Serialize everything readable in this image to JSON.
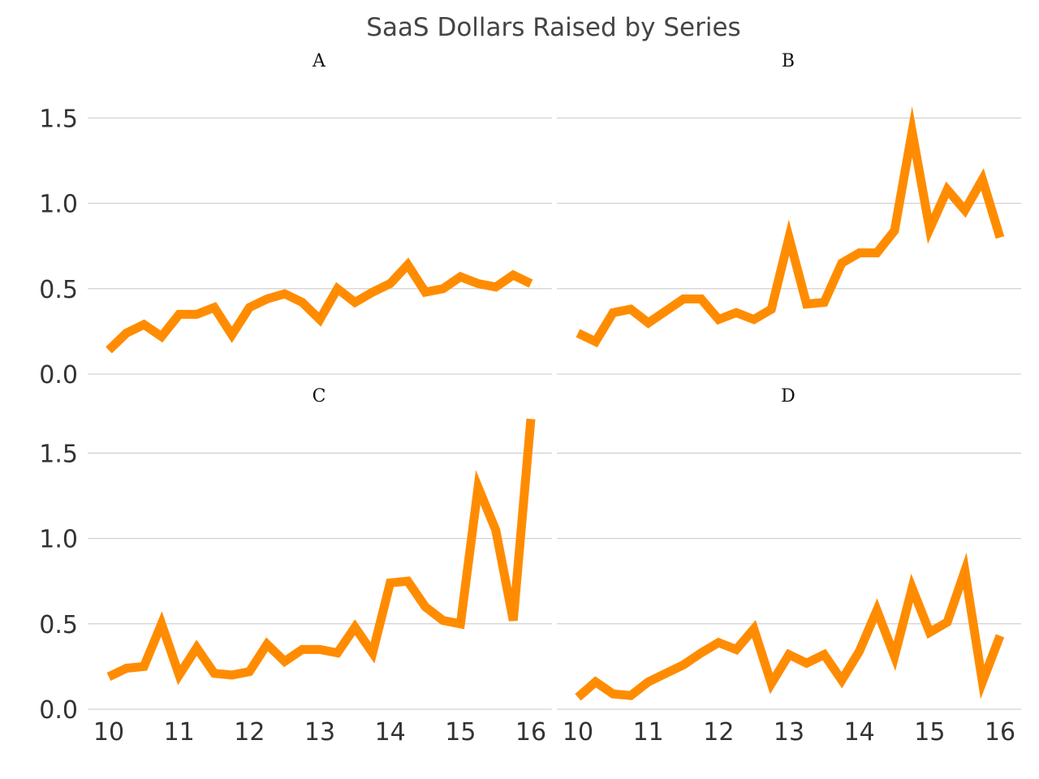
{
  "chart_data": {
    "type": "line",
    "title": "SaaS Dollars Raised by Series",
    "xlabel": "",
    "ylabel": "",
    "x_ticks": [
      10,
      11,
      12,
      13,
      14,
      15,
      16
    ],
    "y_ticks": [
      "0.0",
      "0.5",
      "1.0",
      "1.5"
    ],
    "xlim": [
      10,
      16
    ],
    "ylim": [
      0,
      1.75
    ],
    "grid": "horizontal",
    "line_color": "#FF8C00",
    "panels": [
      {
        "title": "A",
        "x": [
          10,
          10.25,
          10.5,
          10.75,
          11,
          11.25,
          11.5,
          11.75,
          12,
          12.25,
          12.5,
          12.75,
          13,
          13.25,
          13.5,
          13.75,
          14,
          14.25,
          14.5,
          14.75,
          15,
          15.25,
          15.5,
          15.75,
          16
        ],
        "y": [
          0.14,
          0.24,
          0.29,
          0.22,
          0.35,
          0.35,
          0.39,
          0.23,
          0.39,
          0.44,
          0.47,
          0.42,
          0.32,
          0.5,
          0.42,
          0.48,
          0.53,
          0.64,
          0.48,
          0.5,
          0.57,
          0.53,
          0.51,
          0.58,
          0.53
        ]
      },
      {
        "title": "B",
        "x": [
          10,
          10.25,
          10.5,
          10.75,
          11,
          11.25,
          11.5,
          11.75,
          12,
          12.25,
          12.5,
          12.75,
          13,
          13.25,
          13.5,
          13.75,
          14,
          14.25,
          14.5,
          14.75,
          15,
          15.25,
          15.5,
          15.75,
          16
        ],
        "y": [
          0.24,
          0.19,
          0.36,
          0.38,
          0.3,
          0.37,
          0.44,
          0.44,
          0.32,
          0.36,
          0.32,
          0.38,
          0.8,
          0.41,
          0.42,
          0.65,
          0.71,
          0.71,
          0.84,
          1.42,
          0.85,
          1.08,
          0.96,
          1.14,
          0.8
        ]
      },
      {
        "title": "C",
        "x": [
          10,
          10.25,
          10.5,
          10.75,
          11,
          11.25,
          11.5,
          11.75,
          12,
          12.25,
          12.5,
          12.75,
          13,
          13.25,
          13.5,
          13.75,
          14,
          14.25,
          14.5,
          14.75,
          15,
          15.25,
          15.5,
          15.75,
          16
        ],
        "y": [
          0.19,
          0.24,
          0.25,
          0.5,
          0.2,
          0.36,
          0.21,
          0.2,
          0.22,
          0.38,
          0.28,
          0.35,
          0.35,
          0.33,
          0.48,
          0.33,
          0.74,
          0.75,
          0.6,
          0.52,
          0.5,
          1.3,
          1.05,
          0.52,
          1.7
        ]
      },
      {
        "title": "D",
        "x": [
          10,
          10.25,
          10.5,
          10.75,
          11,
          11.25,
          11.5,
          11.75,
          12,
          12.25,
          12.5,
          12.75,
          13,
          13.25,
          13.5,
          13.75,
          14,
          14.25,
          14.5,
          14.75,
          15,
          15.25,
          15.5,
          15.75,
          16
        ],
        "y": [
          0.07,
          0.16,
          0.09,
          0.08,
          0.16,
          0.21,
          0.26,
          0.33,
          0.39,
          0.35,
          0.47,
          0.15,
          0.32,
          0.27,
          0.32,
          0.17,
          0.34,
          0.58,
          0.31,
          0.71,
          0.45,
          0.51,
          0.81,
          0.16,
          0.43
        ]
      }
    ]
  }
}
